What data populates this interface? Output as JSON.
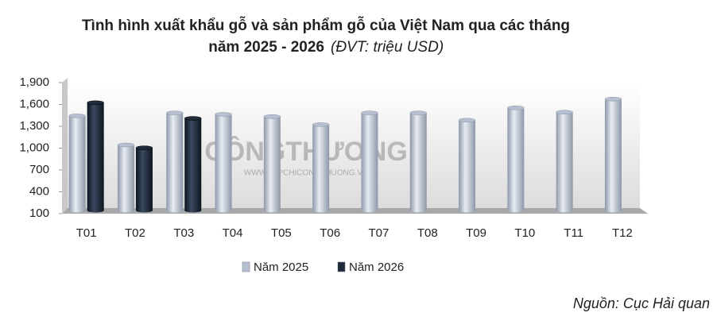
{
  "chart_data": {
    "type": "bar",
    "title": [
      "Tình hình xuất khẩu gỗ và sản phẩm gỗ của Việt Nam qua các tháng",
      "năm 2025 - 2026"
    ],
    "unit": "(ĐVT: triệu USD)",
    "categories": [
      "T01",
      "T02",
      "T03",
      "T04",
      "T05",
      "T06",
      "T07",
      "T08",
      "T09",
      "T10",
      "T11",
      "T12"
    ],
    "series": [
      {
        "name": "Năm 2025",
        "color": "#b7c0d0",
        "values": [
          1400,
          1000,
          1440,
          1420,
          1390,
          1280,
          1440,
          1440,
          1340,
          1510,
          1450,
          1630
        ]
      },
      {
        "name": "Năm 2026",
        "color": "#1f2a3a",
        "values": [
          1580,
          960,
          1365,
          null,
          null,
          null,
          null,
          null,
          null,
          null,
          null,
          null
        ]
      }
    ],
    "ylim": [
      100,
      1900
    ],
    "yticks": [
      100,
      400,
      700,
      {
        "value": 1000,
        "label": "1,000"
      },
      {
        "value": 1300,
        "label": "1,300"
      },
      {
        "value": 1600,
        "label": "1,600"
      },
      {
        "value": 1900,
        "label": "1,900"
      }
    ],
    "grid": false,
    "legend": "bottom",
    "watermark": [
      "CÔNGTHƯƠNG",
      "WWW.TAPCHICONGTHUONG.VN"
    ],
    "source": "Nguồn: Cục Hải quan"
  }
}
